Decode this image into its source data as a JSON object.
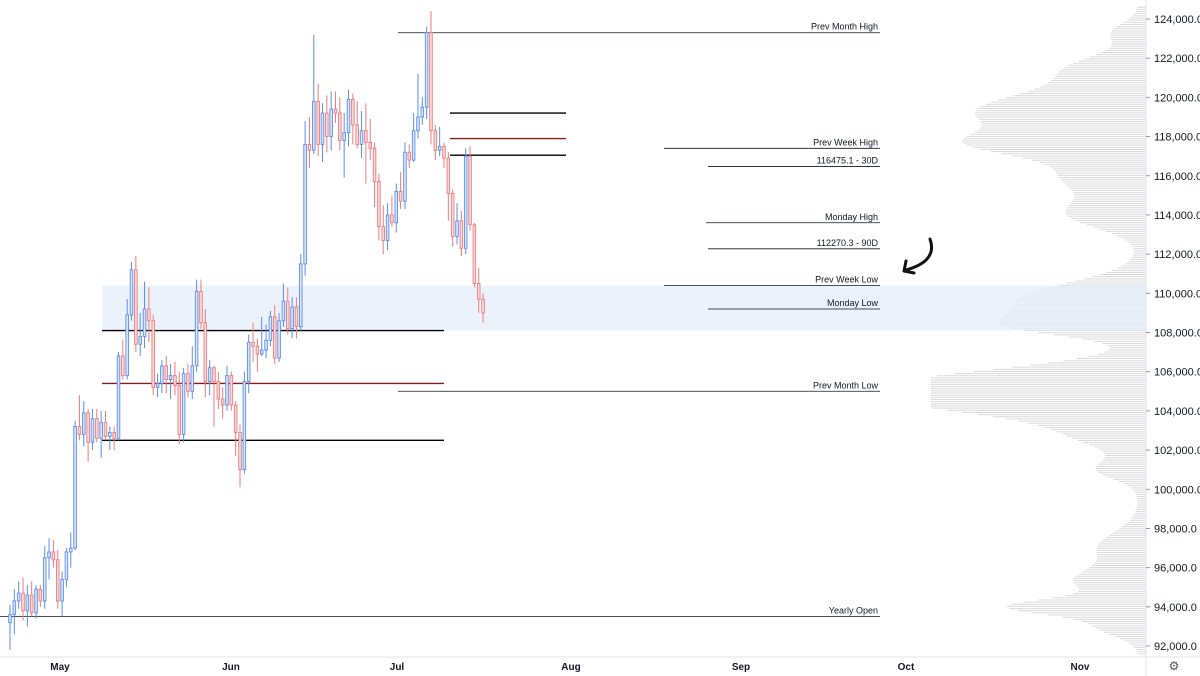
{
  "chart_data": {
    "type": "candlestick",
    "x_labels": [
      "May",
      "Jun",
      "Jul",
      "Aug",
      "Sep",
      "Oct",
      "Nov"
    ],
    "y_ticks": [
      "124,000.0",
      "122,000.0",
      "120,000.0",
      "118,000.0",
      "116,000.0",
      "114,000.0",
      "112,000.0",
      "110,000.0",
      "108,000.0",
      "106,000.0",
      "104,000.0",
      "102,000.0",
      "100,000.0",
      "98,000.0",
      "96,000.0",
      "94,000.0",
      "92,000.0"
    ],
    "ylim": [
      91500,
      124900
    ],
    "colors": {
      "up": "#5b8def",
      "down": "#ef7b7b",
      "zone": "#e6edfb",
      "profile": "#d9d9d9"
    },
    "zone": {
      "from": 108100,
      "to": 110400
    },
    "levels": [
      {
        "label": "Prev Month High",
        "value": 123300
      },
      {
        "label": "Prev Week High",
        "value": 117400
      },
      {
        "label": "116475.1 - 30D",
        "value": 116475.1
      },
      {
        "label": "Monday High",
        "value": 113600
      },
      {
        "label": "112270.3 - 90D",
        "value": 112270.3
      },
      {
        "label": "Prev Week Low",
        "value": 110400
      },
      {
        "label": "Monday Low",
        "value": 109200
      },
      {
        "label": "Prev Month Low",
        "value": 105000
      },
      {
        "label": "Yearly Open",
        "value": 93500
      }
    ],
    "sr_lines": [
      {
        "value": 108100,
        "color": "#000000"
      },
      {
        "value": 105400,
        "color": "#8b1a1a"
      },
      {
        "value": 102500,
        "color": "#000000"
      },
      {
        "value": 119200,
        "color": "#000000"
      },
      {
        "value": 117900,
        "color": "#8b1a1a"
      },
      {
        "value": 117050,
        "color": "#000000"
      }
    ],
    "candles": [
      [
        93200,
        94100,
        91800,
        93600
      ],
      [
        93600,
        94900,
        92600,
        94300
      ],
      [
        94300,
        95300,
        93900,
        94700
      ],
      [
        94700,
        95500,
        93300,
        93800
      ],
      [
        93800,
        95100,
        93000,
        94600
      ],
      [
        94600,
        95300,
        93500,
        93700
      ],
      [
        93700,
        95100,
        93400,
        94900
      ],
      [
        94900,
        95100,
        94000,
        94300
      ],
      [
        94300,
        97100,
        93900,
        96500
      ],
      [
        96500,
        97500,
        95400,
        96800
      ],
      [
        96800,
        97400,
        96000,
        96400
      ],
      [
        96400,
        96900,
        93900,
        94300
      ],
      [
        94300,
        95800,
        93500,
        95400
      ],
      [
        95400,
        97000,
        95000,
        96800
      ],
      [
        96800,
        97800,
        96000,
        97000
      ],
      [
        97000,
        103500,
        96900,
        103200
      ],
      [
        103200,
        104800,
        102500,
        102800
      ],
      [
        102800,
        104500,
        102200,
        103900
      ],
      [
        103900,
        104100,
        101400,
        102400
      ],
      [
        102400,
        104100,
        102000,
        103600
      ],
      [
        103600,
        104100,
        102400,
        102600
      ],
      [
        102600,
        104000,
        101600,
        103400
      ],
      [
        103400,
        104000,
        102500,
        102700
      ],
      [
        102700,
        103200,
        102000,
        102900
      ],
      [
        102900,
        103200,
        102000,
        102600
      ],
      [
        102600,
        107000,
        102500,
        106800
      ],
      [
        106800,
        107600,
        105600,
        105800
      ],
      [
        105800,
        109700,
        105600,
        108900
      ],
      [
        108900,
        111600,
        108600,
        111200
      ],
      [
        111200,
        111900,
        107000,
        107400
      ],
      [
        107400,
        109000,
        106800,
        107800
      ],
      [
        107800,
        110600,
        107200,
        109200
      ],
      [
        109200,
        110300,
        107500,
        108600
      ],
      [
        108600,
        108900,
        104800,
        105200
      ],
      [
        105200,
        105900,
        104700,
        105400
      ],
      [
        105400,
        106600,
        104900,
        106300
      ],
      [
        106300,
        106800,
        104900,
        105600
      ],
      [
        105600,
        106400,
        104600,
        105800
      ],
      [
        105800,
        106500,
        104800,
        105300
      ],
      [
        105300,
        106000,
        102300,
        102800
      ],
      [
        102800,
        106200,
        102400,
        105900
      ],
      [
        105900,
        106400,
        104700,
        105000
      ],
      [
        105000,
        107300,
        104600,
        106300
      ],
      [
        106300,
        110700,
        106000,
        110100
      ],
      [
        110100,
        110700,
        108200,
        108500
      ],
      [
        108500,
        109200,
        104700,
        105500
      ],
      [
        105500,
        106600,
        104800,
        106200
      ],
      [
        106200,
        106300,
        103200,
        105500
      ],
      [
        105500,
        106000,
        104100,
        104600
      ],
      [
        104600,
        105200,
        103600,
        104300
      ],
      [
        104300,
        106300,
        104000,
        105800
      ],
      [
        105800,
        106000,
        104000,
        104300
      ],
      [
        104300,
        104500,
        101700,
        102900
      ],
      [
        102900,
        103300,
        100100,
        101000
      ],
      [
        101000,
        106000,
        100800,
        105500
      ],
      [
        105500,
        107900,
        104900,
        107500
      ],
      [
        107500,
        108500,
        106500,
        107300
      ],
      [
        107300,
        107700,
        106000,
        106900
      ],
      [
        106900,
        108800,
        106800,
        107100
      ],
      [
        107100,
        108400,
        106700,
        107600
      ],
      [
        107600,
        109100,
        107300,
        108800
      ],
      [
        108800,
        109400,
        106400,
        106700
      ],
      [
        106700,
        109000,
        106500,
        108600
      ],
      [
        108600,
        110500,
        108300,
        109600
      ],
      [
        109600,
        110300,
        107900,
        108200
      ],
      [
        108200,
        109800,
        107700,
        109300
      ],
      [
        109300,
        109800,
        107700,
        108300
      ],
      [
        108300,
        112000,
        108100,
        111500
      ],
      [
        111500,
        118800,
        110900,
        117600
      ],
      [
        117600,
        119000,
        116400,
        117300
      ],
      [
        117300,
        123200,
        117100,
        119800
      ],
      [
        119800,
        120700,
        117000,
        117600
      ],
      [
        117600,
        119700,
        116700,
        119200
      ],
      [
        119200,
        120100,
        117200,
        118000
      ],
      [
        118000,
        120300,
        117300,
        119400
      ],
      [
        119400,
        120300,
        118700,
        119200
      ],
      [
        119200,
        120000,
        117300,
        117800
      ],
      [
        117800,
        119200,
        115900,
        118200
      ],
      [
        118200,
        120400,
        117500,
        119900
      ],
      [
        119900,
        120200,
        117600,
        118600
      ],
      [
        118600,
        119800,
        117400,
        117600
      ],
      [
        117600,
        119300,
        116900,
        118300
      ],
      [
        118300,
        119700,
        115600,
        117700
      ],
      [
        117700,
        118900,
        116800,
        117400
      ],
      [
        117400,
        117700,
        114400,
        115700
      ],
      [
        115700,
        116100,
        112700,
        113400
      ],
      [
        113400,
        114500,
        112000,
        112700
      ],
      [
        112700,
        114600,
        112200,
        114000
      ],
      [
        114000,
        115000,
        113400,
        113600
      ],
      [
        113600,
        115600,
        113100,
        115200
      ],
      [
        115200,
        116200,
        114300,
        114700
      ],
      [
        114700,
        117700,
        114300,
        117200
      ],
      [
        117200,
        117600,
        116400,
        116800
      ],
      [
        116800,
        119200,
        116700,
        118300
      ],
      [
        118300,
        121200,
        117900,
        119000
      ],
      [
        119000,
        120000,
        118600,
        119500
      ],
      [
        119500,
        123600,
        118900,
        123300
      ],
      [
        123300,
        124400,
        117600,
        118300
      ],
      [
        118300,
        118600,
        116800,
        117300
      ],
      [
        117300,
        118500,
        117000,
        117500
      ],
      [
        117500,
        117700,
        116400,
        116900
      ],
      [
        116900,
        117200,
        113700,
        115100
      ],
      [
        115100,
        115300,
        112400,
        112900
      ],
      [
        112900,
        114600,
        112500,
        113700
      ],
      [
        113700,
        114200,
        111900,
        112300
      ],
      [
        112300,
        117400,
        112000,
        117000
      ],
      [
        117000,
        117500,
        113200,
        113500
      ],
      [
        113500,
        113600,
        110300,
        110500
      ],
      [
        110500,
        111300,
        109000,
        109700
      ],
      [
        109700,
        110000,
        108500,
        109000
      ]
    ]
  }
}
